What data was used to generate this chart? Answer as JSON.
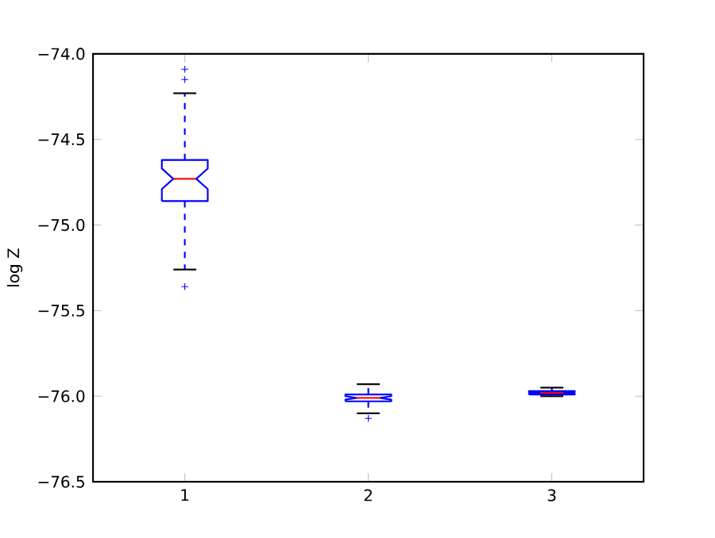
{
  "chart_data": {
    "type": "box",
    "ylabel": "log Z",
    "categories": [
      "1",
      "2",
      "3"
    ],
    "color": "#0000ff",
    "boxes": [
      {
        "low": -75.26,
        "q1": -74.86,
        "median": -74.73,
        "q3": -74.62,
        "high": -74.23,
        "outliers": [
          -74.09,
          -74.15,
          -75.36
        ]
      },
      {
        "low": -76.1,
        "q1": -76.03,
        "median": -76.01,
        "q3": -75.99,
        "high": -75.93,
        "outliers": [
          -76.13
        ]
      },
      {
        "low": -76.0,
        "q1": -75.99,
        "median": -75.98,
        "q3": -75.97,
        "high": -75.95
      }
    ],
    "ylim": [
      -76.5,
      -74.0
    ],
    "yticks": [
      {
        "value": -76.5,
        "label": "−76.5"
      },
      {
        "value": -76.0,
        "label": "−76.0"
      },
      {
        "value": -75.5,
        "label": "−75.5"
      },
      {
        "value": -75.0,
        "label": "−75.0"
      },
      {
        "value": -74.5,
        "label": "−74.5"
      },
      {
        "value": -74.0,
        "label": "−74.0"
      }
    ],
    "marker": "cross"
  }
}
